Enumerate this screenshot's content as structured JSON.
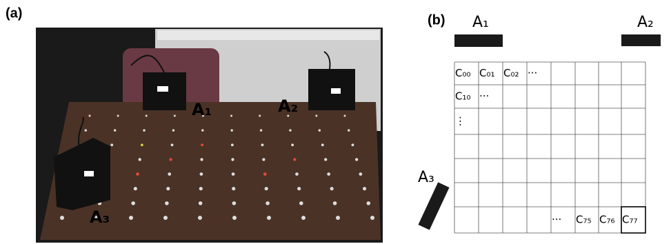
{
  "panel_a": {
    "label": "(a)",
    "photo_labels": [
      "A₁",
      "A₂",
      "A₃"
    ]
  },
  "panel_b": {
    "label": "(b)",
    "anchors": [
      "A₁",
      "A₂",
      "A₃"
    ],
    "cell_labels": [
      "C₀₀",
      "C₀₁",
      "C₀₂",
      "···",
      "C₁₀",
      "···",
      "⋮",
      "···",
      "C₇₅",
      "C₇₆",
      "C₇₇"
    ]
  }
}
